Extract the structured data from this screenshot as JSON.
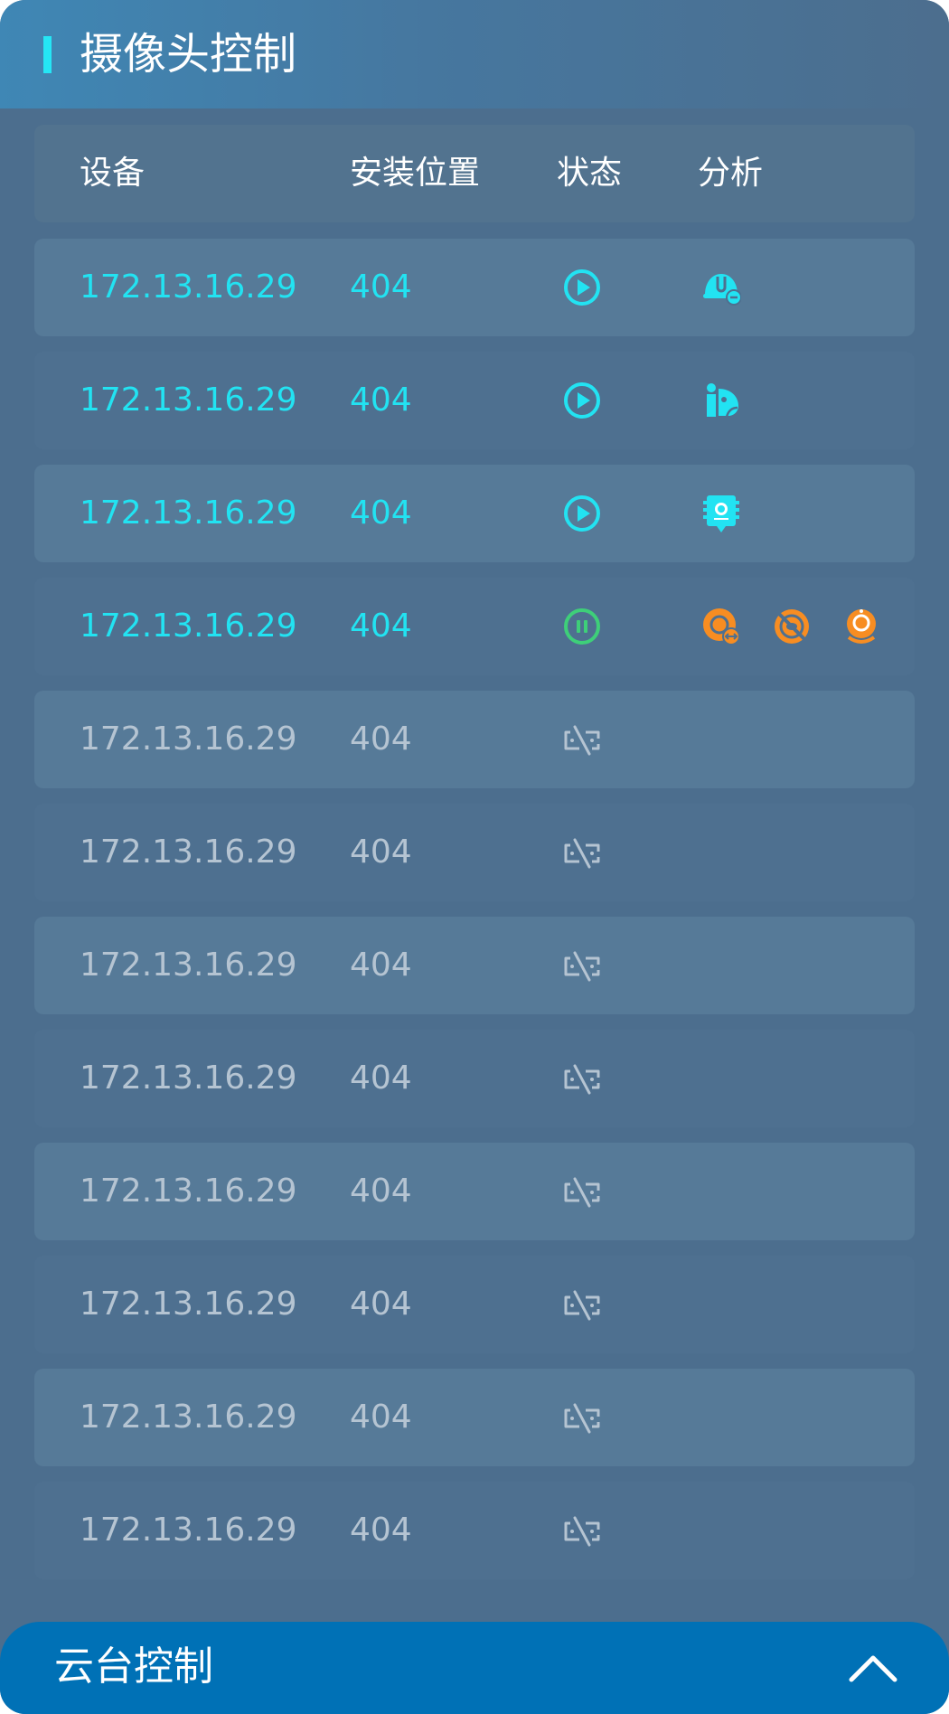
{
  "panel": {
    "title": "摄像头控制"
  },
  "table": {
    "headers": [
      "设备",
      "安装位置",
      "状态",
      "分析"
    ],
    "rows": [
      {
        "ip": "172.13.16.29",
        "location": "404",
        "status": "playing",
        "analysis": [
          "helmet-alert-icon"
        ]
      },
      {
        "ip": "172.13.16.29",
        "location": "404",
        "status": "playing",
        "analysis": [
          "person-intrusion-icon"
        ]
      },
      {
        "ip": "172.13.16.29",
        "location": "404",
        "status": "playing",
        "analysis": [
          "face-capture-icon"
        ]
      },
      {
        "ip": "172.13.16.29",
        "location": "404",
        "status": "paused",
        "analysis": [
          "camera-swap-icon",
          "camera-blocked-icon",
          "webcam-icon"
        ]
      },
      {
        "ip": "172.13.16.29",
        "location": "404",
        "status": "offline",
        "analysis": []
      },
      {
        "ip": "172.13.16.29",
        "location": "404",
        "status": "offline",
        "analysis": []
      },
      {
        "ip": "172.13.16.29",
        "location": "404",
        "status": "offline",
        "analysis": []
      },
      {
        "ip": "172.13.16.29",
        "location": "404",
        "status": "offline",
        "analysis": []
      },
      {
        "ip": "172.13.16.29",
        "location": "404",
        "status": "offline",
        "analysis": []
      },
      {
        "ip": "172.13.16.29",
        "location": "404",
        "status": "offline",
        "analysis": []
      },
      {
        "ip": "172.13.16.29",
        "location": "404",
        "status": "offline",
        "analysis": []
      },
      {
        "ip": "172.13.16.29",
        "location": "404",
        "status": "offline",
        "analysis": []
      }
    ]
  },
  "footer": {
    "title": "云台控制",
    "toggle_icon": "chevron-up-icon"
  },
  "colors": {
    "accent": "#22e3f2",
    "paused": "#3ecf79",
    "warning": "#f78d22",
    "offline": "#b5c4d2",
    "footer": "#0071b6"
  }
}
